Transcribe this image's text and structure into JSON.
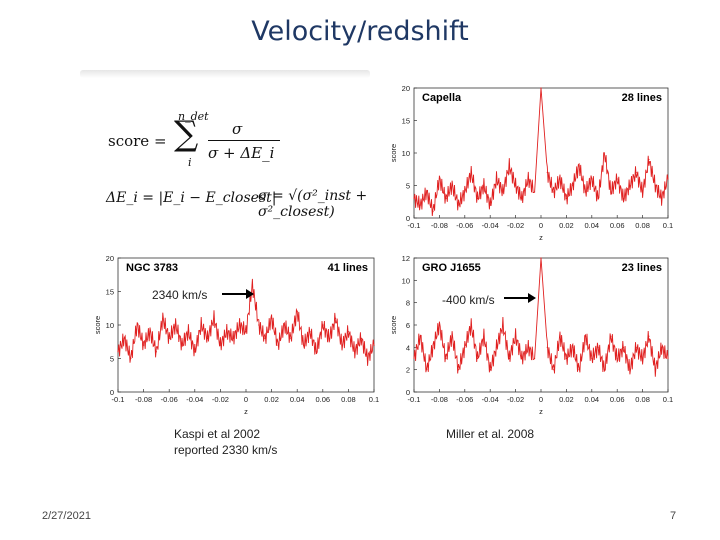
{
  "slide": {
    "title": "Velocity/redshift",
    "date": "2/27/2021",
    "page_number": "7"
  },
  "formula": {
    "score_lhs": "score =",
    "sum_upper": "n_det",
    "sum_lower": "i",
    "numerator": "σ",
    "denominator": "σ + ΔE_i",
    "delta_e": "ΔE_i = |E_i − E_closest|",
    "sigma": "σ = √(σ²_inst + σ²_closest)"
  },
  "annotations": {
    "ngc_velocity": "2340 km/s",
    "gro_velocity": "-400 km/s",
    "kaspi_line1": "Kaspi et al 2002",
    "kaspi_line2": "reported 2330 km/s",
    "miller": "Miller et al. 2008"
  },
  "colors": {
    "series": "#e02020",
    "title": "#1f3864",
    "axis": "#333333"
  },
  "chart_data": [
    {
      "type": "line",
      "title": "Capella",
      "count_label": "28 lines",
      "xlabel": "z",
      "ylabel": "score",
      "xlim": [
        -0.1,
        0.1
      ],
      "ylim": [
        0,
        20
      ],
      "xticks": [
        -0.1,
        -0.08,
        -0.06,
        -0.04,
        -0.02,
        0,
        0.02,
        0.04,
        0.06,
        0.08,
        0.1
      ],
      "xtick_labels": [
        "-0.1",
        "-0.08",
        "-0.06",
        "-0.04",
        "-0.02",
        "0",
        "0.02",
        "0.04",
        "0.06",
        "0.08",
        "0.1"
      ],
      "yticks": [
        0,
        5,
        10,
        15,
        20
      ],
      "ytick_labels": [
        "0",
        "5",
        "10",
        "15",
        "20"
      ],
      "series": [
        {
          "values": [
            "-0.100:3",
            "-0.095:2",
            "-0.090:4",
            "-0.085:1",
            "-0.080:6",
            "-0.075:3",
            "-0.070:5",
            "-0.065:2",
            "-0.060:4",
            "-0.055:7",
            "-0.050:3",
            "-0.045:5",
            "-0.040:2",
            "-0.035:6",
            "-0.030:4",
            "-0.025:8",
            "-0.020:5",
            "-0.015:3",
            "-0.010:6",
            "-0.005:4",
            "0.000:20",
            "0.005:7",
            "0.010:4",
            "0.015:6",
            "0.020:3",
            "0.025:5",
            "0.030:8",
            "0.035:4",
            "0.040:6",
            "0.045:3",
            "0.050:10",
            "0.055:4",
            "0.060:6",
            "0.065:3",
            "0.070:5",
            "0.075:7",
            "0.080:4",
            "0.085:9",
            "0.090:5",
            "0.095:3",
            "0.100:6"
          ]
        }
      ]
    },
    {
      "type": "line",
      "title": "NGC 3783",
      "count_label": "41 lines",
      "xlabel": "z",
      "ylabel": "score",
      "xlim": [
        -0.1,
        0.1
      ],
      "ylim": [
        0,
        20
      ],
      "xticks": [
        -0.1,
        -0.08,
        -0.06,
        -0.04,
        -0.02,
        0,
        0.02,
        0.04,
        0.06,
        0.08,
        0.1
      ],
      "xtick_labels": [
        "-0.1",
        "-0.08",
        "-0.06",
        "-0.04",
        "-0.02",
        "0",
        "0.02",
        "0.04",
        "0.06",
        "0.08",
        "0.1"
      ],
      "yticks": [
        0,
        5,
        10,
        15,
        20
      ],
      "ytick_labels": [
        "0",
        "5",
        "10",
        "15",
        "20"
      ],
      "series": [
        {
          "values": [
            "-0.100:6",
            "-0.095:8",
            "-0.090:5",
            "-0.085:10",
            "-0.080:7",
            "-0.075:9",
            "-0.070:6",
            "-0.065:11",
            "-0.060:8",
            "-0.055:10",
            "-0.050:7",
            "-0.045:9",
            "-0.040:6",
            "-0.035:10",
            "-0.030:8",
            "-0.025:11",
            "-0.020:7",
            "-0.015:9",
            "-0.010:8",
            "-0.005:10",
            "0.000:9",
            "0.005:16",
            "0.010:10",
            "0.015:8",
            "0.020:11",
            "0.025:7",
            "0.030:10",
            "0.035:8",
            "0.040:12",
            "0.045:7",
            "0.050:9",
            "0.055:6",
            "0.060:10",
            "0.065:8",
            "0.070:11",
            "0.075:7",
            "0.080:9",
            "0.085:6",
            "0.090:8",
            "0.095:5",
            "0.100:7"
          ]
        }
      ]
    },
    {
      "type": "line",
      "title": "GRO J1655",
      "count_label": "23 lines",
      "xlabel": "z",
      "ylabel": "score",
      "xlim": [
        -0.1,
        0.1
      ],
      "ylim": [
        0,
        12
      ],
      "xticks": [
        -0.1,
        -0.08,
        -0.06,
        -0.04,
        -0.02,
        0,
        0.02,
        0.04,
        0.06,
        0.08,
        0.1
      ],
      "xtick_labels": [
        "-0.1",
        "-0.08",
        "-0.06",
        "-0.04",
        "-0.02",
        "0",
        "0.02",
        "0.04",
        "0.06",
        "0.08",
        "0.1"
      ],
      "yticks": [
        0,
        2,
        4,
        6,
        8,
        10,
        12
      ],
      "ytick_labels": [
        "0",
        "2",
        "4",
        "6",
        "8",
        "10",
        "12"
      ],
      "series": [
        {
          "values": [
            "-0.100:3",
            "-0.095:5",
            "-0.090:2",
            "-0.085:4",
            "-0.080:6",
            "-0.075:3",
            "-0.070:5",
            "-0.065:2",
            "-0.060:4",
            "-0.055:6",
            "-0.050:3",
            "-0.045:5",
            "-0.040:2",
            "-0.035:4",
            "-0.030:6",
            "-0.025:3",
            "-0.020:5",
            "-0.015:3",
            "-0.010:4",
            "-0.005:3",
            "0.000:12",
            "0.005:4",
            "0.010:2",
            "0.015:5",
            "0.020:3",
            "0.025:4",
            "0.030:2",
            "0.035:5",
            "0.040:3",
            "0.045:4",
            "0.050:2",
            "0.055:5",
            "0.060:3",
            "0.065:4",
            "0.070:2",
            "0.075:4",
            "0.080:3",
            "0.085:5",
            "0.090:2",
            "0.095:4",
            "0.100:3"
          ]
        }
      ]
    }
  ]
}
